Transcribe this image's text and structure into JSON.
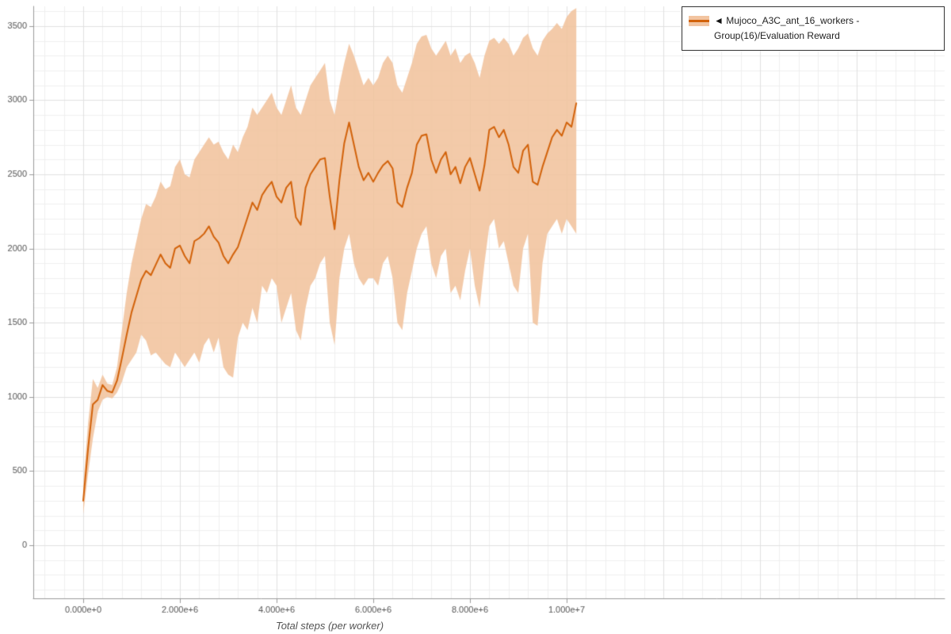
{
  "page": {
    "background": "#ffffff"
  },
  "chart_data": {
    "type": "line",
    "title": "",
    "xlabel": "Total steps (per worker)",
    "ylabel": "",
    "xlim": [
      -1030000,
      17820000
    ],
    "ylim": [
      -360,
      3630
    ],
    "grid": true,
    "grid_minor_x_step": 400000,
    "grid_minor_y_step": 100,
    "x_ticks": {
      "values": [
        0,
        2000000,
        4000000,
        6000000,
        8000000,
        10000000
      ],
      "labels": [
        "0.000e+0",
        "2.000e+6",
        "4.000e+6",
        "6.000e+6",
        "8.000e+6",
        "1.000e+7"
      ]
    },
    "y_ticks": {
      "values": [
        0,
        500,
        1000,
        1500,
        2000,
        2500,
        3000,
        3500
      ],
      "labels": [
        "0",
        "500",
        "1000",
        "1500",
        "2000",
        "2500",
        "3000",
        "3500"
      ]
    },
    "legend": {
      "position": "top-right",
      "marker": "◄",
      "label": "Mujoco_A3C_ant_16_workers - Group(16)/Evaluation Reward"
    },
    "series": [
      {
        "name": "Mujoco_A3C_ant_16_workers - Group(16)/Evaluation Reward",
        "color": "#d2620a",
        "band_color": "#f2c4a0",
        "x_start": 0,
        "x_step": 100000,
        "mean": [
          300,
          650,
          950,
          980,
          1080,
          1040,
          1030,
          1110,
          1260,
          1420,
          1570,
          1680,
          1790,
          1850,
          1820,
          1890,
          1960,
          1900,
          1870,
          2000,
          2020,
          1950,
          1900,
          2050,
          2070,
          2100,
          2150,
          2080,
          2040,
          1950,
          1900,
          1960,
          2010,
          2110,
          2210,
          2310,
          2260,
          2360,
          2410,
          2450,
          2350,
          2310,
          2410,
          2450,
          2210,
          2160,
          2410,
          2500,
          2550,
          2600,
          2610,
          2350,
          2130,
          2460,
          2710,
          2850,
          2700,
          2550,
          2460,
          2510,
          2450,
          2510,
          2560,
          2590,
          2540,
          2310,
          2280,
          2410,
          2510,
          2700,
          2760,
          2770,
          2600,
          2510,
          2600,
          2650,
          2500,
          2550,
          2440,
          2550,
          2610,
          2500,
          2390,
          2560,
          2800,
          2820,
          2750,
          2800,
          2700,
          2550,
          2510,
          2660,
          2700,
          2450,
          2430,
          2550,
          2650,
          2750,
          2800,
          2760,
          2850,
          2820,
          2980
        ],
        "lower": [
          210,
          480,
          720,
          900,
          980,
          1000,
          990,
          1030,
          1100,
          1200,
          1250,
          1300,
          1420,
          1380,
          1280,
          1300,
          1260,
          1220,
          1200,
          1300,
          1250,
          1200,
          1250,
          1300,
          1230,
          1350,
          1400,
          1300,
          1400,
          1200,
          1150,
          1130,
          1400,
          1500,
          1450,
          1600,
          1500,
          1750,
          1700,
          1800,
          1750,
          1500,
          1600,
          1700,
          1450,
          1380,
          1600,
          1750,
          1800,
          1900,
          1950,
          1500,
          1350,
          1800,
          2000,
          2100,
          1900,
          1800,
          1750,
          1800,
          1800,
          1750,
          1900,
          1950,
          1800,
          1500,
          1450,
          1700,
          1850,
          2000,
          2100,
          2150,
          1900,
          1800,
          1950,
          2000,
          1700,
          1750,
          1650,
          1850,
          2000,
          1750,
          1600,
          1900,
          2150,
          2200,
          2000,
          2050,
          1900,
          1750,
          1700,
          2000,
          2100,
          1500,
          1480,
          1900,
          2100,
          2150,
          2200,
          2100,
          2200,
          2150,
          2100
        ],
        "upper": [
          400,
          820,
          1120,
          1060,
          1150,
          1090,
          1080,
          1200,
          1450,
          1700,
          1900,
          2050,
          2200,
          2300,
          2280,
          2350,
          2450,
          2400,
          2420,
          2550,
          2600,
          2500,
          2480,
          2600,
          2650,
          2700,
          2750,
          2700,
          2720,
          2650,
          2600,
          2700,
          2650,
          2750,
          2820,
          2950,
          2900,
          2950,
          3000,
          3050,
          2950,
          2900,
          3000,
          3100,
          2950,
          2900,
          3000,
          3100,
          3150,
          3200,
          3250,
          3000,
          2900,
          3100,
          3250,
          3380,
          3300,
          3200,
          3100,
          3150,
          3100,
          3150,
          3250,
          3300,
          3250,
          3100,
          3050,
          3150,
          3250,
          3380,
          3430,
          3440,
          3350,
          3300,
          3350,
          3400,
          3300,
          3350,
          3250,
          3300,
          3320,
          3250,
          3150,
          3300,
          3400,
          3420,
          3380,
          3420,
          3380,
          3300,
          3350,
          3420,
          3450,
          3350,
          3300,
          3400,
          3450,
          3480,
          3520,
          3480,
          3560,
          3600,
          3620
        ]
      }
    ]
  }
}
